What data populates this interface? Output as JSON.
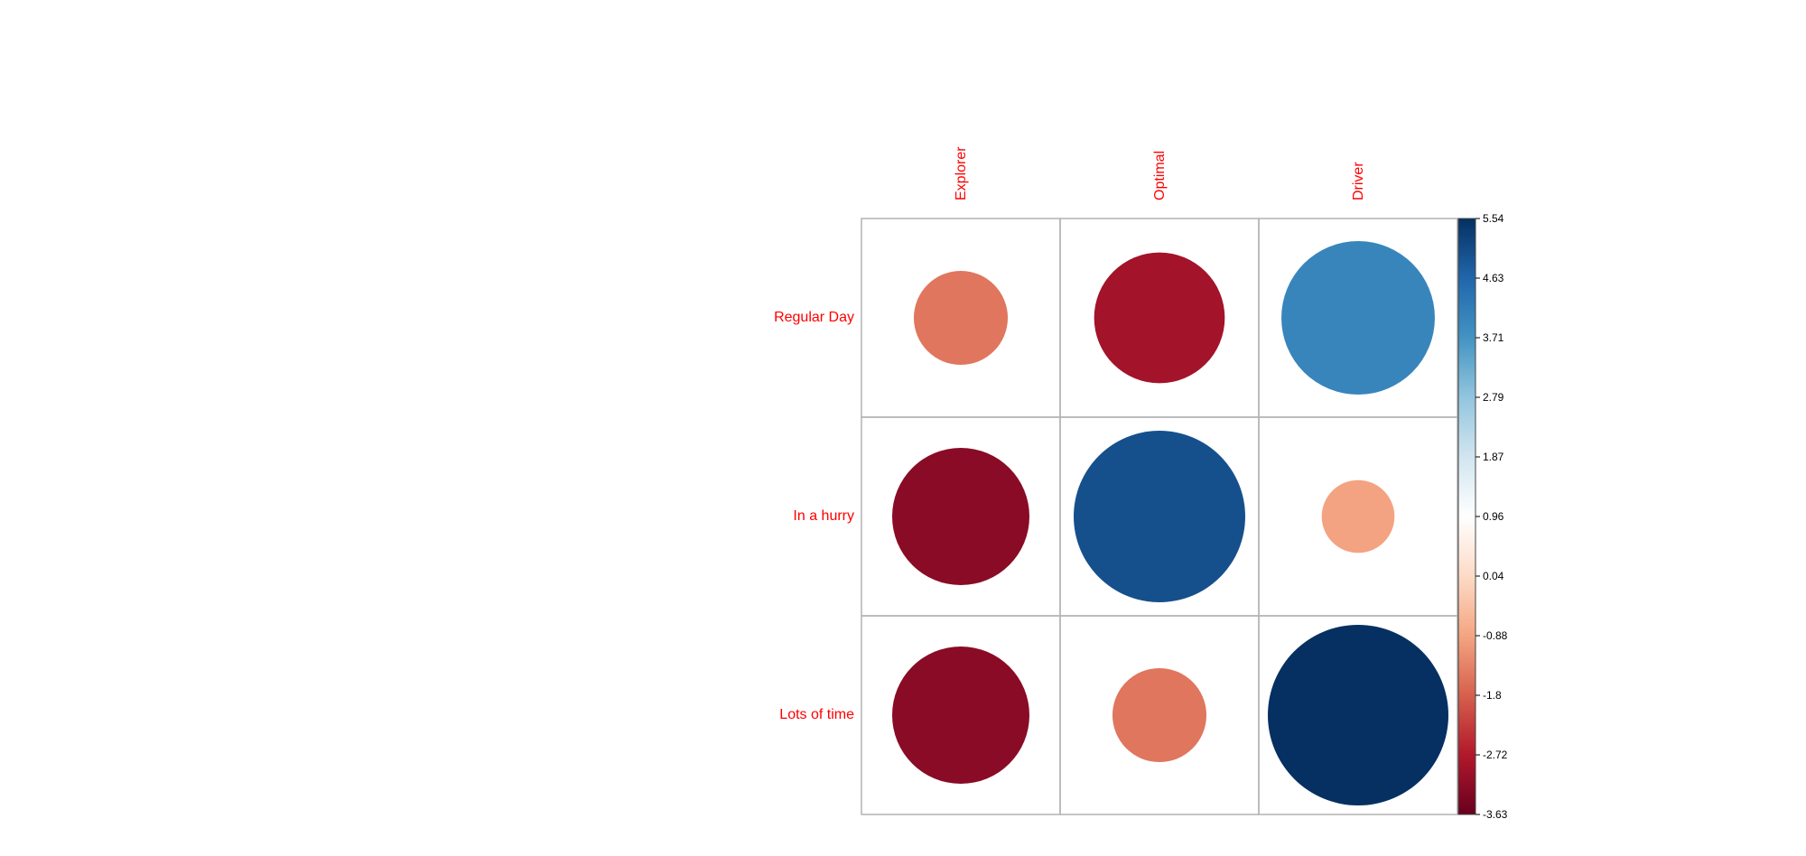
{
  "chart_data": {
    "type": "heatmap",
    "title": "",
    "xlabel": "",
    "ylabel": "",
    "columns": [
      "Explorer",
      "Optimal",
      "Driver"
    ],
    "rows": [
      "Regular Day",
      "In a hurry",
      "Lots of time"
    ],
    "values": [
      [
        -1.5,
        -2.9,
        4.0
      ],
      [
        -3.2,
        5.0,
        -0.9
      ],
      [
        -3.2,
        -1.5,
        5.54
      ]
    ],
    "color_scale": {
      "min": -3.63,
      "max": 5.54,
      "ticks": [
        "5.54",
        "4.63",
        "3.71",
        "2.79",
        "1.87",
        "0.96",
        "0.04",
        "-0.88",
        "-1.8",
        "-2.72",
        "-3.63"
      ]
    },
    "label_color": "#ff0000",
    "grid": true,
    "legend": "right"
  }
}
